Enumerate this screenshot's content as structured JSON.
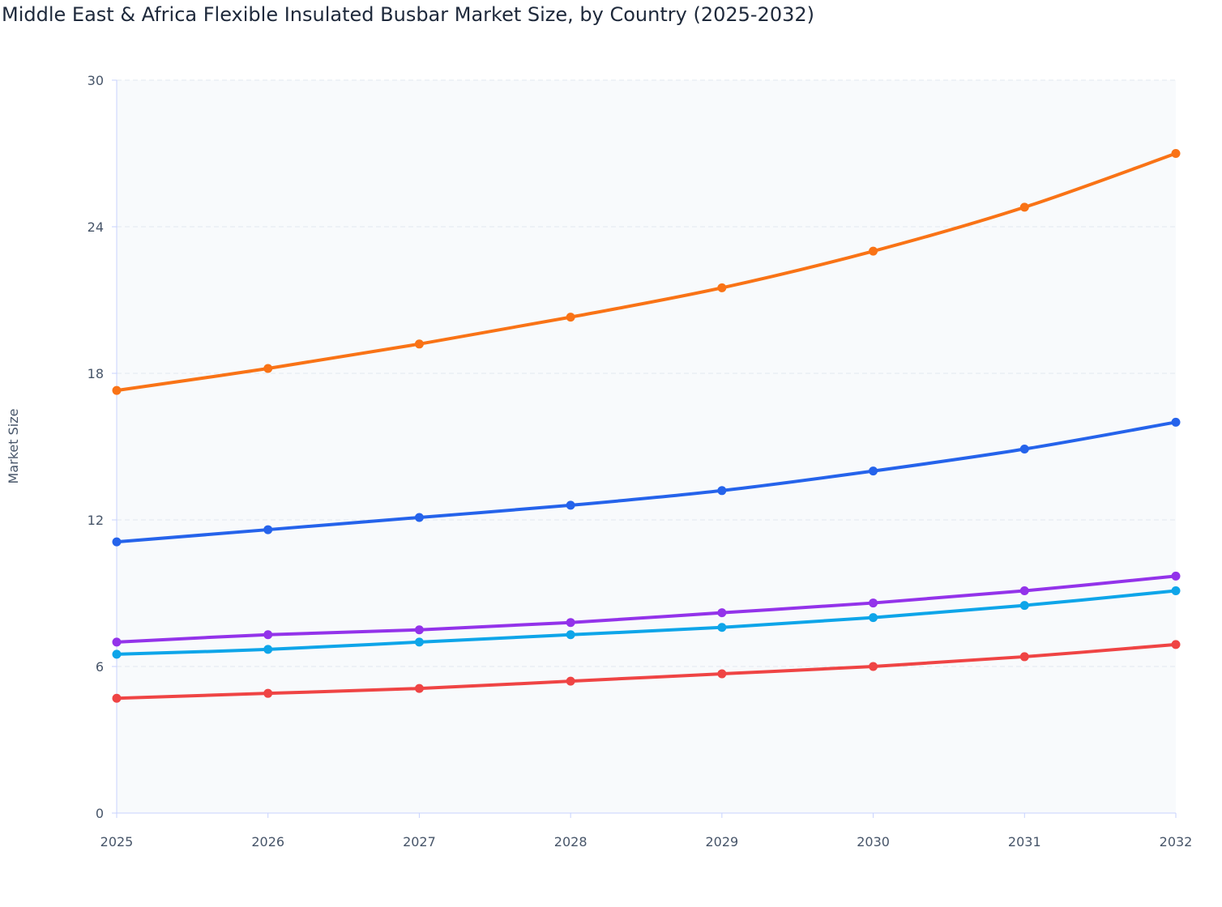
{
  "chart_data": {
    "type": "line",
    "title": "Middle East & Africa Flexible Insulated Busbar Market Size, by Country (2025-2032)",
    "xlabel": "",
    "ylabel": "Market Size",
    "x": [
      "2025",
      "2026",
      "2027",
      "2028",
      "2029",
      "2030",
      "2031",
      "2032"
    ],
    "ylim": [
      0,
      30
    ],
    "yticks": [
      "0",
      "6",
      "12",
      "18",
      "24",
      "30"
    ],
    "grid": true,
    "series": [
      {
        "color": "#f97316",
        "values": [
          17.3,
          18.2,
          19.2,
          20.3,
          21.5,
          23.0,
          24.8,
          27.0
        ]
      },
      {
        "color": "#2563eb",
        "values": [
          11.1,
          11.6,
          12.1,
          12.6,
          13.2,
          14.0,
          14.9,
          16.0
        ]
      },
      {
        "color": "#9333ea",
        "values": [
          7.0,
          7.3,
          7.5,
          7.8,
          8.2,
          8.6,
          9.1,
          9.7
        ]
      },
      {
        "color": "#0ea5e9",
        "values": [
          6.5,
          6.7,
          7.0,
          7.3,
          7.6,
          8.0,
          8.5,
          9.1
        ]
      },
      {
        "color": "#ef4444",
        "values": [
          4.7,
          4.9,
          5.1,
          5.4,
          5.7,
          6.0,
          6.4,
          6.9
        ]
      }
    ]
  }
}
